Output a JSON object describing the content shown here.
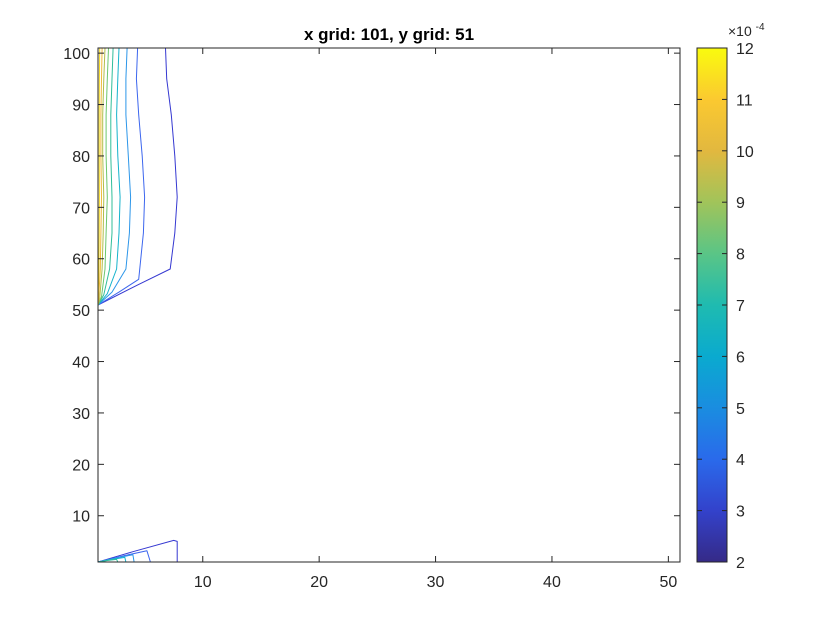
{
  "chart_data": {
    "type": "contour",
    "title": "x grid: 101, y grid: 51",
    "xlim": [
      1,
      51
    ],
    "ylim": [
      1,
      101
    ],
    "xticks": [
      10,
      20,
      30,
      40,
      50
    ],
    "yticks": [
      10,
      20,
      30,
      40,
      50,
      60,
      70,
      80,
      90,
      100
    ],
    "grid": false,
    "colormap": "parula",
    "colorbar": {
      "clim": [
        2,
        12
      ],
      "ticks": [
        2,
        3,
        4,
        5,
        6,
        7,
        8,
        9,
        10,
        11,
        12
      ],
      "exponent_label": "×10^-4",
      "exponent_base": "×10",
      "exponent_power": "-4",
      "placement": "right"
    },
    "levels": [
      {
        "level": 3,
        "color": "#3538D1",
        "paths": [
          [
            [
              6.8,
              101
            ],
            [
              6.9,
              95
            ],
            [
              7.3,
              88
            ],
            [
              7.6,
              80
            ],
            [
              7.8,
              72
            ],
            [
              7.6,
              65
            ],
            [
              7.2,
              58
            ],
            [
              4.5,
              55
            ],
            [
              1,
              51
            ]
          ],
          [
            [
              1,
              1
            ],
            [
              4,
              3
            ],
            [
              7.5,
              5.2
            ],
            [
              7.8,
              5
            ],
            [
              7.8,
              1
            ]
          ]
        ]
      },
      {
        "level": 4,
        "color": "#3C66EE",
        "paths": [
          [
            [
              4.4,
              101
            ],
            [
              4.3,
              95
            ],
            [
              4.5,
              88
            ],
            [
              4.8,
              80
            ],
            [
              5.0,
              72
            ],
            [
              4.9,
              65
            ],
            [
              4.5,
              56
            ],
            [
              2.8,
              53.5
            ],
            [
              1,
              51
            ]
          ],
          [
            [
              1,
              1
            ],
            [
              3.2,
              2.2
            ],
            [
              5.2,
              3.2
            ],
            [
              5.5,
              1
            ]
          ]
        ]
      },
      {
        "level": 5,
        "color": "#2C96E9",
        "paths": [
          [
            [
              3.5,
              101
            ],
            [
              3.4,
              95
            ],
            [
              3.4,
              88
            ],
            [
              3.6,
              80
            ],
            [
              3.8,
              72
            ],
            [
              3.7,
              65
            ],
            [
              3.4,
              58
            ],
            [
              2.2,
              53.5
            ],
            [
              1,
              51
            ]
          ],
          [
            [
              1,
              1
            ],
            [
              2.6,
              1.8
            ],
            [
              4,
              2.4
            ],
            [
              4.1,
              1
            ]
          ]
        ]
      },
      {
        "level": 6,
        "color": "#16B3CC",
        "paths": [
          [
            [
              2.8,
              101
            ],
            [
              2.7,
              95
            ],
            [
              2.6,
              88
            ],
            [
              2.7,
              80
            ],
            [
              2.9,
              72
            ],
            [
              2.8,
              65
            ],
            [
              2.6,
              58
            ],
            [
              1.8,
              53.2
            ],
            [
              1,
              51
            ]
          ],
          [
            [
              1,
              1
            ],
            [
              2.2,
              1.5
            ],
            [
              3.3,
              1.9
            ],
            [
              3.4,
              1
            ]
          ]
        ]
      },
      {
        "level": 7,
        "color": "#30BE9A",
        "paths": [
          [
            [
              2.3,
              101
            ],
            [
              2.2,
              95
            ],
            [
              2.1,
              88
            ],
            [
              2.1,
              80
            ],
            [
              2.2,
              72
            ],
            [
              2.2,
              65
            ],
            [
              2.0,
              58
            ],
            [
              1.5,
              53
            ],
            [
              1,
              51
            ]
          ],
          [
            [
              1,
              1
            ],
            [
              1.8,
              1.3
            ],
            [
              2.6,
              1.5
            ],
            [
              2.7,
              1
            ]
          ]
        ]
      },
      {
        "level": 8,
        "color": "#6DC66C",
        "paths": [
          [
            [
              1.9,
              101
            ],
            [
              1.8,
              95
            ],
            [
              1.7,
              88
            ],
            [
              1.7,
              80
            ],
            [
              1.8,
              72
            ],
            [
              1.7,
              65
            ],
            [
              1.6,
              58
            ],
            [
              1.3,
              52.6
            ],
            [
              1,
              51
            ]
          ]
        ]
      },
      {
        "level": 9,
        "color": "#B1BE49",
        "paths": [
          [
            [
              1.6,
              101
            ],
            [
              1.5,
              95
            ],
            [
              1.4,
              88
            ],
            [
              1.4,
              80
            ],
            [
              1.5,
              72
            ],
            [
              1.45,
              65
            ],
            [
              1.35,
              58
            ],
            [
              1.15,
              52.3
            ],
            [
              1,
              51
            ]
          ]
        ]
      },
      {
        "level": 10,
        "color": "#EEBA39",
        "paths": [
          [
            [
              1.35,
              101
            ],
            [
              1.3,
              95
            ],
            [
              1.25,
              88
            ],
            [
              1.25,
              80
            ],
            [
              1.3,
              72
            ],
            [
              1.25,
              65
            ],
            [
              1.2,
              58
            ],
            [
              1.05,
              52
            ],
            [
              1,
              51
            ]
          ]
        ]
      },
      {
        "level": 11,
        "color": "#F6DA23",
        "paths": [
          [
            [
              1.15,
              101
            ],
            [
              1.12,
              95
            ],
            [
              1.1,
              88
            ],
            [
              1.1,
              80
            ],
            [
              1.12,
              72
            ],
            [
              1.1,
              65
            ],
            [
              1.08,
              58
            ],
            [
              1,
              51.5
            ]
          ]
        ]
      }
    ]
  }
}
